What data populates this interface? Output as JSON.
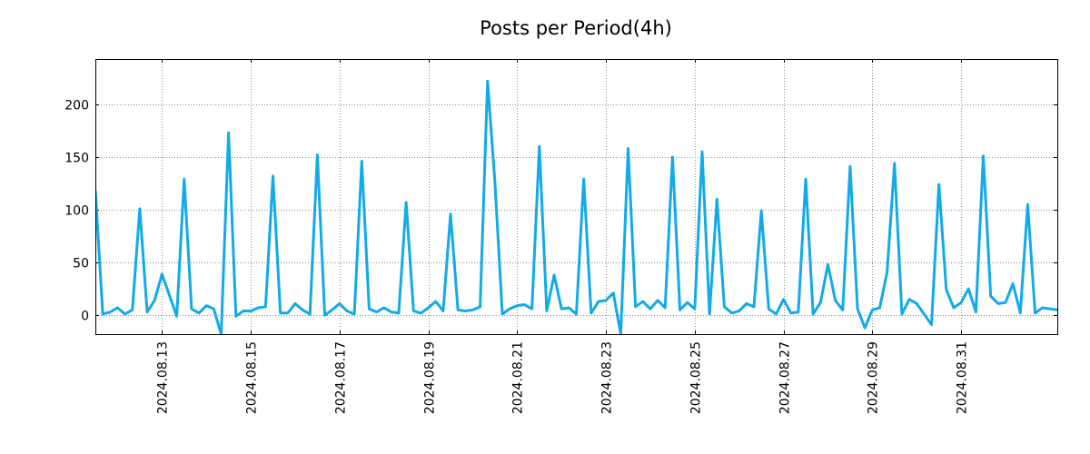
{
  "chart_data": {
    "type": "line",
    "title": "Posts per Period(4h)",
    "xlabel": "",
    "ylabel": "",
    "ylim": [
      -18,
      243
    ],
    "x_range": [
      "2024.08.11 12:00",
      "2024.09.02 04:00"
    ],
    "y_ticks": [
      0,
      50,
      100,
      150,
      200
    ],
    "x_ticks": [
      "2024.08.13",
      "2024.08.15",
      "2024.08.17",
      "2024.08.19",
      "2024.08.21",
      "2024.08.23",
      "2024.08.25",
      "2024.08.27",
      "2024.08.29",
      "2024.08.31"
    ],
    "grid": true,
    "legend": "none",
    "series": [
      {
        "name": "posts",
        "color": "#12aae8",
        "x": [
          "2024.08.11 12:00",
          "2024.08.11 16:00",
          "2024.08.11 20:00",
          "2024.08.12 00:00",
          "2024.08.12 04:00",
          "2024.08.12 08:00",
          "2024.08.12 12:00",
          "2024.08.12 16:00",
          "2024.08.12 20:00",
          "2024.08.13 00:00",
          "2024.08.13 04:00",
          "2024.08.13 08:00",
          "2024.08.13 12:00",
          "2024.08.13 16:00",
          "2024.08.13 20:00",
          "2024.08.14 00:00",
          "2024.08.14 04:00",
          "2024.08.14 08:00",
          "2024.08.14 12:00",
          "2024.08.14 16:00",
          "2024.08.14 20:00",
          "2024.08.15 00:00",
          "2024.08.15 04:00",
          "2024.08.15 08:00",
          "2024.08.15 12:00",
          "2024.08.15 16:00",
          "2024.08.15 20:00",
          "2024.08.16 00:00",
          "2024.08.16 04:00",
          "2024.08.16 08:00",
          "2024.08.16 12:00",
          "2024.08.16 16:00",
          "2024.08.16 20:00",
          "2024.08.17 00:00",
          "2024.08.17 04:00",
          "2024.08.17 08:00",
          "2024.08.17 12:00",
          "2024.08.17 16:00",
          "2024.08.17 20:00",
          "2024.08.18 00:00",
          "2024.08.18 04:00",
          "2024.08.18 08:00",
          "2024.08.18 12:00",
          "2024.08.18 16:00",
          "2024.08.18 20:00",
          "2024.08.19 00:00",
          "2024.08.19 04:00",
          "2024.08.19 08:00",
          "2024.08.19 12:00",
          "2024.08.19 16:00",
          "2024.08.19 20:00",
          "2024.08.20 00:00",
          "2024.08.20 04:00",
          "2024.08.20 08:00",
          "2024.08.20 12:00",
          "2024.08.20 16:00",
          "2024.08.20 20:00",
          "2024.08.21 00:00",
          "2024.08.21 04:00",
          "2024.08.21 08:00",
          "2024.08.21 12:00",
          "2024.08.21 16:00",
          "2024.08.21 20:00",
          "2024.08.22 00:00",
          "2024.08.22 04:00",
          "2024.08.22 08:00",
          "2024.08.22 12:00",
          "2024.08.22 16:00",
          "2024.08.22 20:00",
          "2024.08.23 00:00",
          "2024.08.23 04:00",
          "2024.08.23 08:00",
          "2024.08.23 12:00",
          "2024.08.23 16:00",
          "2024.08.23 20:00",
          "2024.08.24 00:00",
          "2024.08.24 04:00",
          "2024.08.24 08:00",
          "2024.08.24 12:00",
          "2024.08.24 16:00",
          "2024.08.24 20:00",
          "2024.08.25 00:00",
          "2024.08.25 04:00",
          "2024.08.25 08:00",
          "2024.08.25 12:00",
          "2024.08.25 16:00",
          "2024.08.25 20:00",
          "2024.08.26 00:00",
          "2024.08.26 04:00",
          "2024.08.26 08:00",
          "2024.08.26 12:00",
          "2024.08.26 16:00",
          "2024.08.26 20:00",
          "2024.08.27 00:00",
          "2024.08.27 04:00",
          "2024.08.27 08:00",
          "2024.08.27 12:00",
          "2024.08.27 16:00",
          "2024.08.27 20:00",
          "2024.08.28 00:00",
          "2024.08.28 04:00",
          "2024.08.28 08:00",
          "2024.08.28 12:00",
          "2024.08.28 16:00",
          "2024.08.28 20:00",
          "2024.08.29 00:00",
          "2024.08.29 04:00",
          "2024.08.29 08:00",
          "2024.08.29 12:00",
          "2024.08.29 16:00",
          "2024.08.29 20:00",
          "2024.08.30 00:00",
          "2024.08.30 04:00",
          "2024.08.30 08:00",
          "2024.08.30 12:00",
          "2024.08.30 16:00",
          "2024.08.30 20:00",
          "2024.08.31 00:00",
          "2024.08.31 04:00",
          "2024.08.31 08:00",
          "2024.08.31 12:00",
          "2024.08.31 16:00",
          "2024.08.31 20:00",
          "2024.09.01 00:00",
          "2024.09.01 04:00",
          "2024.09.01 08:00",
          "2024.09.01 12:00",
          "2024.09.01 16:00",
          "2024.09.01 20:00",
          "2024.09.02 00:00",
          "2024.09.02 04:00"
        ],
        "values": [
          118,
          1,
          3,
          7,
          1,
          5,
          101,
          3,
          14,
          39,
          19,
          -1,
          129,
          6,
          2,
          9,
          6,
          -18,
          173,
          -1,
          4,
          4,
          7,
          8,
          132,
          2,
          2,
          11,
          5,
          1,
          152,
          0,
          5,
          11,
          4,
          1,
          146,
          6,
          3,
          7,
          3,
          2,
          107,
          4,
          2,
          7,
          13,
          4,
          96,
          5,
          4,
          5,
          8,
          222,
          126,
          1,
          6,
          9,
          10,
          6,
          160,
          4,
          38,
          6,
          7,
          1,
          129,
          2,
          13,
          14,
          21,
          -18,
          158,
          8,
          13,
          6,
          14,
          7,
          150,
          5,
          12,
          6,
          155,
          1,
          110,
          8,
          2,
          4,
          11,
          8,
          99,
          6,
          1,
          15,
          2,
          3,
          129,
          1,
          12,
          48,
          14,
          5,
          141,
          6,
          -12,
          5,
          7,
          41,
          144,
          1,
          15,
          11,
          1,
          -9,
          124,
          24,
          7,
          12,
          25,
          3,
          151,
          18,
          11,
          12,
          30,
          2,
          105,
          2,
          7,
          6,
          5
        ]
      }
    ]
  }
}
